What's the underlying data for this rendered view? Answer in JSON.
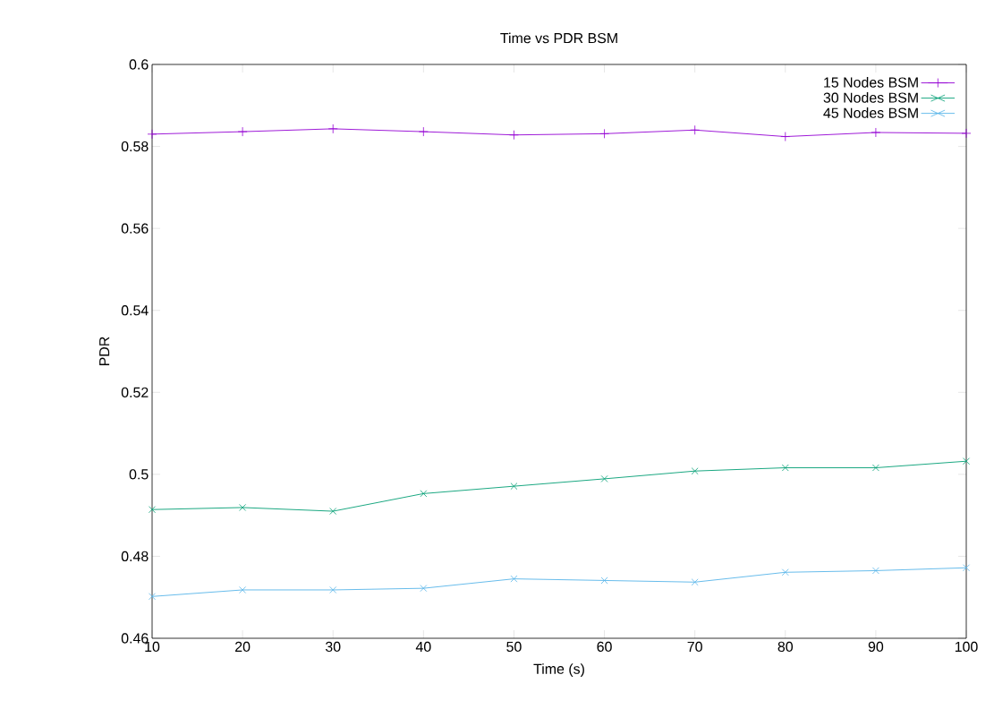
{
  "chart_data": {
    "type": "line",
    "title": "Time vs  PDR BSM",
    "xlabel": "Time (s)",
    "ylabel": "PDR",
    "x": [
      10,
      20,
      30,
      40,
      50,
      60,
      70,
      80,
      90,
      100
    ],
    "series": [
      {
        "name": "15 Nodes BSM",
        "color": "#9400d3",
        "marker": "plus",
        "values": [
          0.583,
          0.5836,
          0.5843,
          0.5836,
          0.5828,
          0.5831,
          0.584,
          0.5824,
          0.5834,
          0.5832
        ]
      },
      {
        "name": "30 Nodes BSM",
        "color": "#009e73",
        "marker": "cross",
        "values": [
          0.4914,
          0.4919,
          0.491,
          0.4953,
          0.4971,
          0.4989,
          0.5008,
          0.5016,
          0.5016,
          0.5032
        ]
      },
      {
        "name": "45 Nodes BSM",
        "color": "#56b4e9",
        "marker": "cross",
        "values": [
          0.4702,
          0.4718,
          0.4718,
          0.4722,
          0.4745,
          0.4741,
          0.4737,
          0.4761,
          0.4765,
          0.4772
        ]
      }
    ],
    "xlim": [
      10,
      100
    ],
    "xticks": [
      10,
      20,
      30,
      40,
      50,
      60,
      70,
      80,
      90,
      100
    ],
    "ylim": [
      0.46,
      0.6
    ],
    "yticks": [
      0.46,
      0.48,
      0.5,
      0.52,
      0.54,
      0.56,
      0.58,
      0.6
    ],
    "grid": false,
    "legend": "top right",
    "line_style": "solid"
  }
}
